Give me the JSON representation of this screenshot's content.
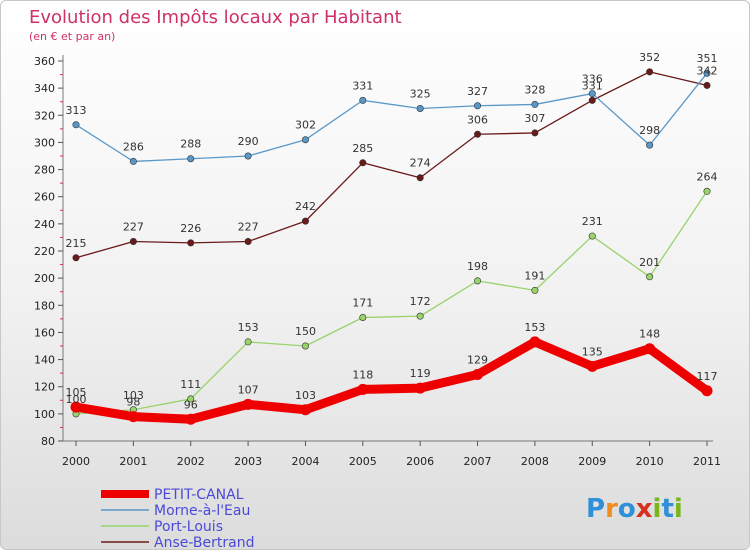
{
  "chart_data": {
    "type": "line",
    "title": "Evolution des Impôts locaux par Habitant",
    "subtitle": "(en € et par an)",
    "x": [
      "2000",
      "2001",
      "2002",
      "2003",
      "2004",
      "2005",
      "2006",
      "2007",
      "2008",
      "2009",
      "2010",
      "2011"
    ],
    "ylim": [
      80,
      360
    ],
    "yticks": [
      80,
      100,
      120,
      140,
      160,
      180,
      200,
      220,
      240,
      260,
      280,
      300,
      320,
      340,
      360
    ],
    "grid": false,
    "legend_position": "bottom-left",
    "series": [
      {
        "name": "Anse-Bertrand",
        "color": "#6b1a1a",
        "values": [
          215,
          227,
          226,
          227,
          242,
          285,
          274,
          306,
          307,
          331,
          352,
          342
        ]
      },
      {
        "name": "Port-Louis",
        "color": "#99d36b",
        "values": [
          100,
          103,
          111,
          153,
          150,
          171,
          172,
          198,
          191,
          231,
          201,
          264
        ]
      },
      {
        "name": "Morne-à-l'Eau",
        "color": "#5a98c8",
        "values": [
          313,
          286,
          288,
          290,
          302,
          331,
          325,
          327,
          328,
          336,
          298,
          351
        ]
      },
      {
        "name": "PETIT-CANAL",
        "color": "#ee0000",
        "values": [
          105,
          98,
          96,
          107,
          103,
          118,
          119,
          129,
          153,
          135,
          148,
          117
        ]
      }
    ],
    "legend_order": [
      "PETIT-CANAL",
      "Morne-à-l'Eau",
      "Port-Louis",
      "Anse-Bertrand"
    ],
    "legend_text_color": "#4a4ad8"
  },
  "logo": {
    "text": "Proxiti",
    "letter_colors": [
      "#2f8fd8",
      "#f28c1e",
      "#2f8fd8",
      "#d8301e",
      "#7ab51d",
      "#2f8fd8",
      "#7ab51d"
    ]
  }
}
